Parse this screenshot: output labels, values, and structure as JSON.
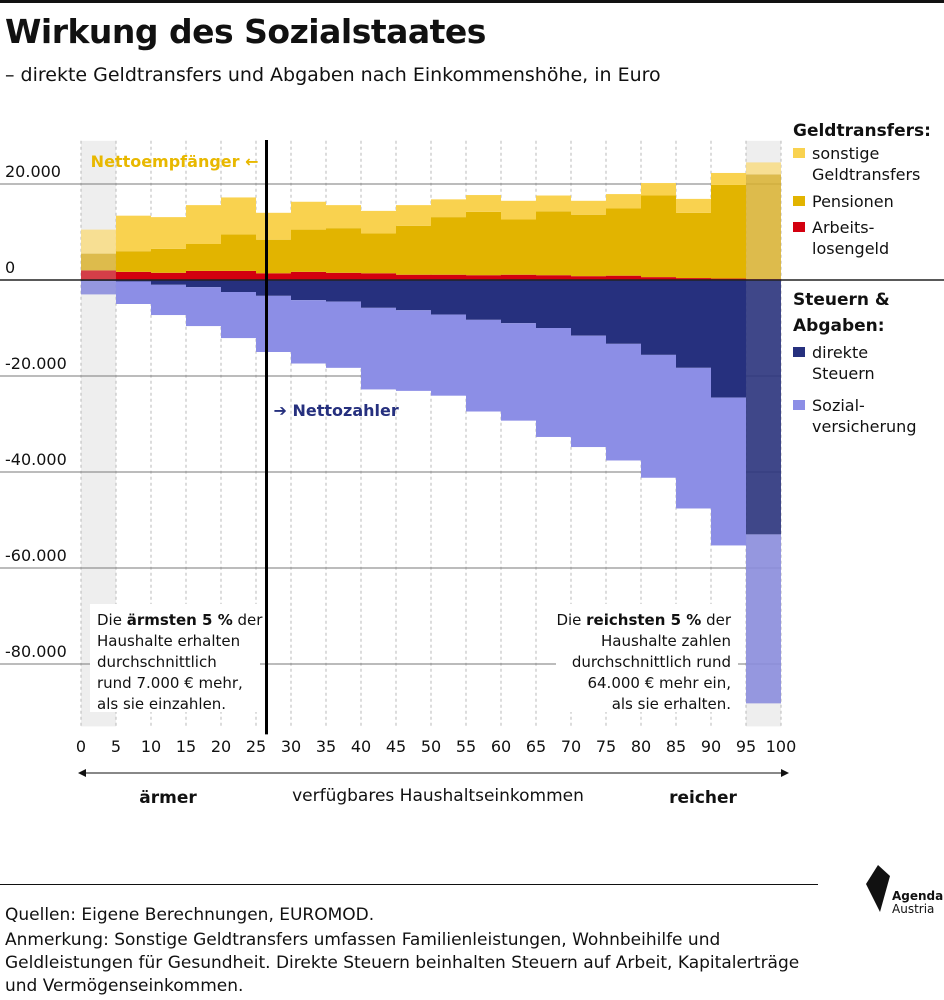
{
  "header": {
    "title": "Wirkung des Sozialstaates",
    "subtitle": "– direkte Geldtransfers und Abgaben nach Einkommenshöhe, in Euro"
  },
  "legend": {
    "transfers_heading": "Geldtransfers:",
    "taxes_heading_line1": "Steuern &",
    "taxes_heading_line2": "Abgaben:",
    "items": [
      {
        "key": "sonstige",
        "line1": "sonstige",
        "line2": "Geldtransfers",
        "color": "#f9d24f"
      },
      {
        "key": "pensionen",
        "line1": "Pensionen",
        "line2": "",
        "color": "#e2b400"
      },
      {
        "key": "arbeitslos",
        "line1": "Arbeits-",
        "line2": "losengeld",
        "color": "#d3000f"
      },
      {
        "key": "direkte",
        "line1": "direkte",
        "line2": "Steuern",
        "color": "#26307e"
      },
      {
        "key": "sozial",
        "line1": "Sozial-",
        "line2": "versicherung",
        "color": "#8c8ee6"
      }
    ]
  },
  "annotations": {
    "nettoempfaenger": "Nettoempfänger ←",
    "nettozahler": "➔ Nettozahler",
    "left_box": [
      "Die |ärmsten 5 %| der",
      "Haushalte erhalten",
      "durchschnittlich",
      "rund 7.000 € mehr,",
      "als sie einzahlen."
    ],
    "right_box": [
      "Die |reichsten 5 %| der",
      "Haushalte zahlen",
      "durchschnittlich rund",
      "64.000 € mehr ein,",
      "als sie erhalten."
    ],
    "aermer": "ärmer",
    "reicher": "reicher",
    "axis_title": "verfügbares Haushaltseinkommen"
  },
  "footer": {
    "sources": "Quellen: Eigene Berechnungen, EUROMOD.",
    "note": "Anmerkung: Sonstige Geldtransfers umfassen Familienleistungen, Wohnbeihilfe und Geldleistungen für Gesundheit.  Direkte Steuern beinhalten Steuern auf Arbeit, Kapitalerträge und Vermögenseinkommen.",
    "logo_line1": "Agenda",
    "logo_line2": "Austria"
  },
  "chart_data": {
    "type": "bar",
    "stacked": true,
    "x_bins": [
      "0-5",
      "5-10",
      "10-15",
      "15-20",
      "20-25",
      "25-30",
      "30-35",
      "35-40",
      "40-45",
      "45-50",
      "50-55",
      "55-60",
      "60-65",
      "65-70",
      "70-75",
      "75-80",
      "80-85",
      "85-90",
      "90-95",
      "95-100"
    ],
    "xticks": [
      0,
      5,
      10,
      15,
      20,
      25,
      30,
      35,
      40,
      45,
      50,
      55,
      60,
      65,
      70,
      75,
      80,
      85,
      90,
      95,
      100
    ],
    "yticks": [
      20000,
      0,
      -20000,
      -40000,
      -60000,
      -80000
    ],
    "ytick_labels": [
      "20.000",
      "0",
      "-20.000",
      "-40.000",
      "-60.000",
      "-80.000"
    ],
    "ylim": [
      -93000,
      29000
    ],
    "xlim": [
      0,
      100
    ],
    "grid": true,
    "nettozahler_threshold_x": 26.5,
    "highlighted_bins": [
      "0-5",
      "95-100"
    ],
    "series": [
      {
        "name": "Arbeitslosengeld",
        "key": "arbeitslos",
        "values": [
          2000,
          1700,
          1500,
          1900,
          1900,
          1400,
          1700,
          1500,
          1400,
          1100,
          1100,
          1000,
          1100,
          1000,
          800,
          900,
          600,
          400,
          300,
          200
        ]
      },
      {
        "name": "Pensionen",
        "key": "pensionen",
        "values": [
          3500,
          4300,
          5000,
          5600,
          7600,
          7000,
          8800,
          9300,
          8300,
          10200,
          12000,
          13200,
          11500,
          13300,
          12800,
          14000,
          17000,
          13600,
          19500,
          21800
        ]
      },
      {
        "name": "sonstige Geldtransfers",
        "key": "sonstige",
        "values": [
          5000,
          7400,
          6600,
          8100,
          7700,
          5600,
          5800,
          4800,
          4700,
          4300,
          3700,
          3500,
          3900,
          3300,
          2900,
          3000,
          2600,
          2900,
          2500,
          2500
        ]
      },
      {
        "name": "direkte Steuern",
        "key": "direkte",
        "values": [
          -200,
          -300,
          -1000,
          -1500,
          -2500,
          -3300,
          -4200,
          -4500,
          -5800,
          -6300,
          -7200,
          -8300,
          -9000,
          -10000,
          -11600,
          -13300,
          -15600,
          -18300,
          -24500,
          -53000
        ]
      },
      {
        "name": "Sozialversicherung",
        "key": "sozial",
        "values": [
          -2800,
          -4700,
          -6300,
          -8100,
          -9600,
          -11700,
          -13200,
          -13800,
          -17000,
          -16800,
          -16900,
          -19100,
          -20300,
          -22700,
          -23200,
          -24300,
          -25600,
          -29300,
          -30800,
          -35200
        ]
      }
    ]
  }
}
